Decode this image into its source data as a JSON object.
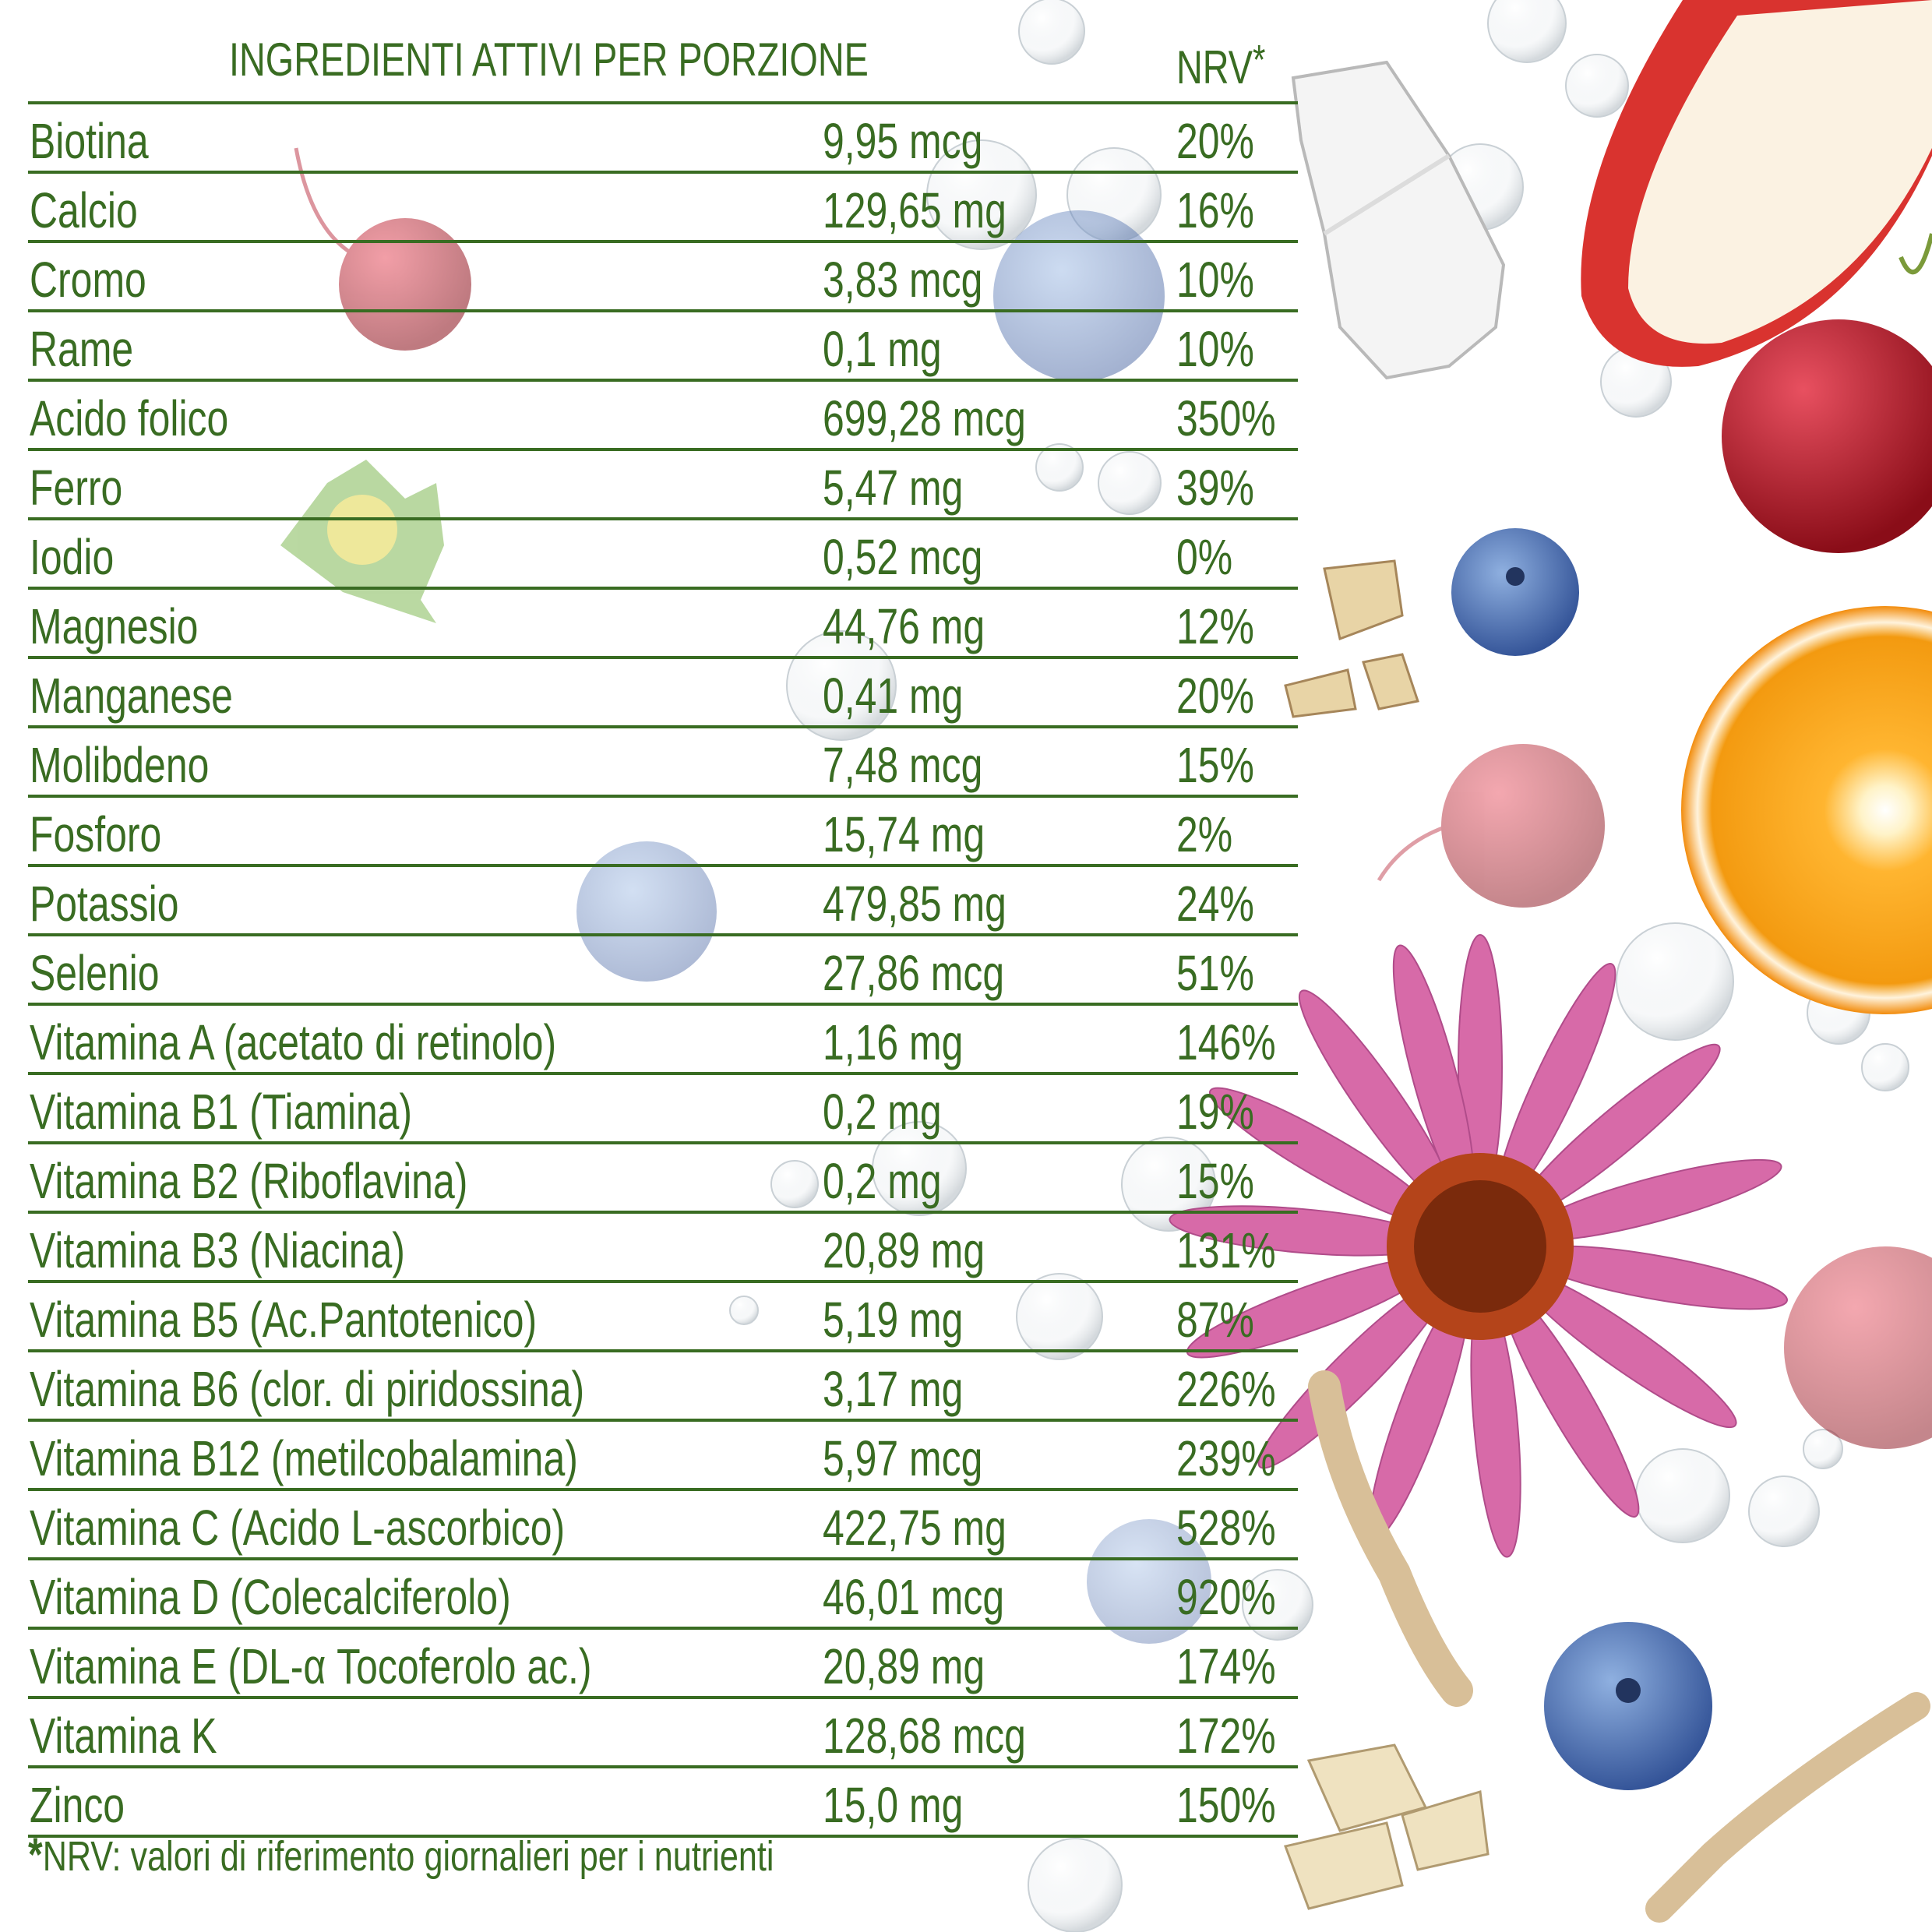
{
  "header": {
    "title": "INGREDIENTI ATTIVI PER PORZIONE",
    "nrv": "NRV",
    "nrv_star": "*"
  },
  "rows": [
    {
      "name": "Biotina",
      "amount": "9,95 mcg",
      "nrv": "20%"
    },
    {
      "name": "Calcio",
      "amount": "129,65 mg",
      "nrv": "16%"
    },
    {
      "name": "Cromo",
      "amount": "3,83 mcg",
      "nrv": "10%"
    },
    {
      "name": "Rame",
      "amount": "0,1 mg",
      "nrv": "10%"
    },
    {
      "name": "Acido folico",
      "amount": "699,28 mcg",
      "nrv": "350%"
    },
    {
      "name": "Ferro",
      "amount": "5,47 mg",
      "nrv": "39%"
    },
    {
      "name": "Iodio",
      "amount": "0,52 mcg",
      "nrv": "0%"
    },
    {
      "name": "Magnesio",
      "amount": "44,76 mg",
      "nrv": "12%"
    },
    {
      "name": "Manganese",
      "amount": "0,41 mg",
      "nrv": "20%"
    },
    {
      "name": "Molibdeno",
      "amount": "7,48 mcg",
      "nrv": "15%"
    },
    {
      "name": "Fosforo",
      "amount": "15,74 mg",
      "nrv": "2%"
    },
    {
      "name": "Potassio",
      "amount": "479,85 mg",
      "nrv": "24%"
    },
    {
      "name": "Selenio",
      "amount": "27,86 mcg",
      "nrv": "51%"
    },
    {
      "name": "Vitamina A (acetato di retinolo)",
      "amount": "1,16 mg",
      "nrv": "146%"
    },
    {
      "name": "Vitamina B1 (Tiamina)",
      "amount": "0,2 mg",
      "nrv": "19%"
    },
    {
      "name": "Vitamina B2 (Riboflavina)",
      "amount": "0,2 mg",
      "nrv": "15%"
    },
    {
      "name": "Vitamina B3 (Niacina)",
      "amount": "20,89 mg",
      "nrv": "131%"
    },
    {
      "name": "Vitamina B5 (Ac.Pantotenico)",
      "amount": "5,19 mg",
      "nrv": "87%"
    },
    {
      "name": "Vitamina B6 (clor. di piridossina)",
      "amount": "3,17 mg",
      "nrv": "226%"
    },
    {
      "name": "Vitamina B12 (metilcobalamina)",
      "amount": "5,97 mcg",
      "nrv": "239%"
    },
    {
      "name": "Vitamina C (Acido L-ascorbico)",
      "amount": "422,75 mg",
      "nrv": "528%"
    },
    {
      "name": "Vitamina D (Colecalciferolo)",
      "amount": "46,01 mcg",
      "nrv": "920%"
    },
    {
      "name": "Vitamina E (DL-α Tocoferolo ac.)",
      "amount": "20,89 mg",
      "nrv": "174%"
    },
    {
      "name": "Vitamina K",
      "amount": "128,68 mcg",
      "nrv": "172%"
    },
    {
      "name": "Zinco",
      "amount": "15,0 mg",
      "nrv": "150%"
    }
  ],
  "footnote": {
    "star": "*",
    "text": "NRV: valori di riferimento giornalieri per i nutrienti"
  },
  "colors": {
    "text": "#396c22",
    "background": "#ffffff"
  },
  "decorations": [
    "apple-slice",
    "cherry",
    "coconut-piece",
    "blueberry",
    "orange-half",
    "echinacea-flower",
    "oat-flakes",
    "ginseng-root",
    "water-bubbles",
    "herb-flower"
  ]
}
